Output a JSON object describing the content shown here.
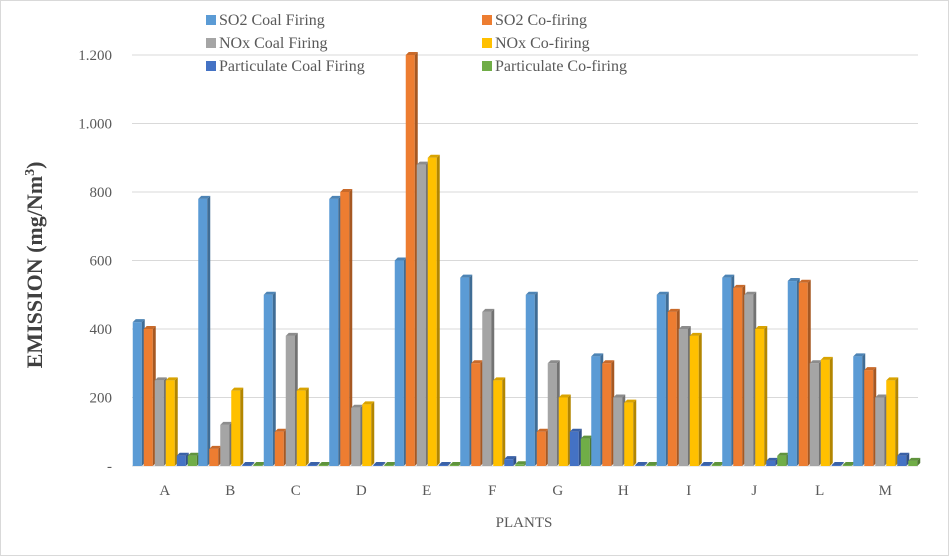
{
  "chart_data": {
    "type": "bar",
    "xlabel": "PLANTS",
    "ylabel": "EMISSION (mg/Nm",
    "ylabel_sup": "3",
    "ylabel_end": ")",
    "ylim": [
      0,
      1200
    ],
    "yticks": [
      0,
      200,
      400,
      600,
      800,
      1000,
      1200
    ],
    "ytick_labels": [
      "-",
      "200",
      "400",
      "600",
      "800",
      "1.000",
      "1.200"
    ],
    "grid": true,
    "legend_position": "top",
    "categories": [
      "A",
      "B",
      "C",
      "D",
      "E",
      "F",
      "G",
      "H",
      "I",
      "J",
      "L",
      "M"
    ],
    "series": [
      {
        "name": "SO2 Coal Firing",
        "color": "#5B9BD5",
        "values": [
          420,
          780,
          500,
          780,
          600,
          550,
          500,
          320,
          500,
          550,
          540,
          320
        ]
      },
      {
        "name": "SO2 Co-firing",
        "color": "#ED7D31",
        "values": [
          400,
          50,
          100,
          800,
          1200,
          300,
          100,
          300,
          450,
          520,
          535,
          280
        ]
      },
      {
        "name": "NOx Coal Firing",
        "color": "#A5A5A5",
        "values": [
          250,
          120,
          380,
          170,
          880,
          450,
          300,
          200,
          400,
          500,
          300,
          200
        ]
      },
      {
        "name": "NOx Co-firing",
        "color": "#FFC000",
        "values": [
          250,
          220,
          220,
          180,
          900,
          250,
          200,
          185,
          380,
          400,
          310,
          250
        ]
      },
      {
        "name": "Particulate Coal Firing",
        "color": "#4472C4",
        "values": [
          30,
          3,
          3,
          3,
          3,
          20,
          100,
          3,
          3,
          15,
          3,
          30
        ]
      },
      {
        "name": "Particulate Co-firing",
        "color": "#70AD47",
        "values": [
          30,
          3,
          3,
          3,
          3,
          5,
          80,
          3,
          3,
          30,
          3,
          15
        ]
      }
    ]
  }
}
